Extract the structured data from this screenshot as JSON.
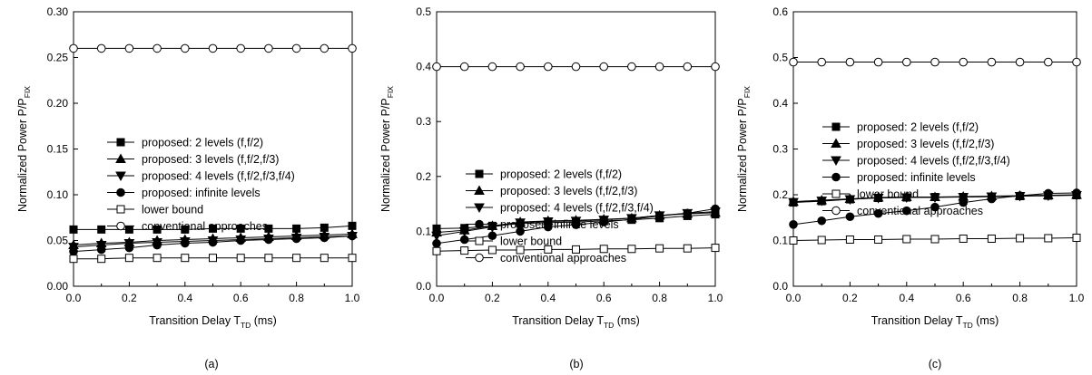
{
  "chart_data": [
    {
      "type": "line",
      "caption": "(a)",
      "xlabel": "Transition Delay T",
      "xlabel_sub": "TD",
      "xlabel_unit": " (ms)",
      "ylabel": "Normalized Power P/P",
      "ylabel_sub": "FIX",
      "xlim": [
        0.0,
        1.0
      ],
      "ylim": [
        0.0,
        0.3
      ],
      "xticks": [
        "0.0",
        "0.2",
        "0.4",
        "0.6",
        "0.8",
        "1.0"
      ],
      "yticks": [
        "0.00",
        "0.05",
        "0.10",
        "0.15",
        "0.20",
        "0.25",
        "0.30"
      ],
      "legend_position": "center-left",
      "x": [
        0.0,
        0.1,
        0.2,
        0.3,
        0.4,
        0.5,
        0.6,
        0.7,
        0.8,
        0.9,
        1.0
      ],
      "series": [
        {
          "name": "proposed: 2 levels (f,f/2)",
          "marker": "filled-square",
          "values": [
            0.062,
            0.062,
            0.062,
            0.062,
            0.062,
            0.063,
            0.063,
            0.063,
            0.063,
            0.064,
            0.066
          ]
        },
        {
          "name": "proposed: 3 levels (f,f/2,f/3)",
          "marker": "filled-triangle-up",
          "values": [
            0.045,
            0.047,
            0.048,
            0.05,
            0.051,
            0.052,
            0.053,
            0.054,
            0.055,
            0.056,
            0.057
          ]
        },
        {
          "name": "proposed: 4 levels (f,f/2,f/3,f/4)",
          "marker": "filled-triangle-down",
          "values": [
            0.043,
            0.045,
            0.047,
            0.048,
            0.049,
            0.05,
            0.051,
            0.052,
            0.053,
            0.054,
            0.055
          ]
        },
        {
          "name": "proposed: infinite levels",
          "marker": "filled-circle",
          "values": [
            0.038,
            0.04,
            0.042,
            0.045,
            0.047,
            0.048,
            0.05,
            0.051,
            0.052,
            0.053,
            0.055
          ]
        },
        {
          "name": "lower bound",
          "marker": "open-square",
          "values": [
            0.03,
            0.03,
            0.031,
            0.031,
            0.031,
            0.031,
            0.031,
            0.031,
            0.031,
            0.031,
            0.031
          ]
        },
        {
          "name": "conventional approaches",
          "marker": "open-circle",
          "values": [
            0.26,
            0.26,
            0.26,
            0.26,
            0.26,
            0.26,
            0.26,
            0.26,
            0.26,
            0.26,
            0.26
          ]
        }
      ]
    },
    {
      "type": "line",
      "caption": "(b)",
      "xlabel": "Transition Delay T",
      "xlabel_sub": "TD",
      "xlabel_unit": " (ms)",
      "ylabel": "Normalized Power P/P",
      "ylabel_sub": "FIX",
      "xlim": [
        0.0,
        1.0
      ],
      "ylim": [
        0.0,
        0.5
      ],
      "xticks": [
        "0.0",
        "0.2",
        "0.4",
        "0.6",
        "0.8",
        "1.0"
      ],
      "yticks": [
        "0.0",
        "0.1",
        "0.2",
        "0.3",
        "0.4",
        "0.5"
      ],
      "legend_position": "center",
      "x": [
        0.0,
        0.1,
        0.2,
        0.3,
        0.4,
        0.5,
        0.6,
        0.7,
        0.8,
        0.9,
        1.0
      ],
      "series": [
        {
          "name": "proposed: 2 levels (f,f/2)",
          "marker": "filled-square",
          "values": [
            0.105,
            0.106,
            0.11,
            0.114,
            0.116,
            0.117,
            0.119,
            0.121,
            0.124,
            0.128,
            0.131
          ]
        },
        {
          "name": "proposed: 3 levels (f,f/2,f/3)",
          "marker": "filled-triangle-up",
          "values": [
            0.098,
            0.102,
            0.11,
            0.117,
            0.119,
            0.12,
            0.122,
            0.124,
            0.129,
            0.132,
            0.134
          ]
        },
        {
          "name": "proposed: 4 levels (f,f/2,f/3,f/4)",
          "marker": "filled-triangle-down",
          "values": [
            0.092,
            0.1,
            0.108,
            0.116,
            0.118,
            0.119,
            0.121,
            0.124,
            0.129,
            0.133,
            0.136
          ]
        },
        {
          "name": "proposed: infinite levels",
          "marker": "filled-circle",
          "values": [
            0.078,
            0.085,
            0.092,
            0.1,
            0.108,
            0.112,
            0.117,
            0.122,
            0.128,
            0.133,
            0.141
          ]
        },
        {
          "name": "lower bound",
          "marker": "open-square",
          "values": [
            0.064,
            0.065,
            0.066,
            0.066,
            0.067,
            0.067,
            0.068,
            0.068,
            0.069,
            0.069,
            0.07
          ]
        },
        {
          "name": "conventional approaches",
          "marker": "open-circle",
          "values": [
            0.4,
            0.4,
            0.4,
            0.4,
            0.4,
            0.4,
            0.4,
            0.4,
            0.4,
            0.4,
            0.4
          ]
        }
      ]
    },
    {
      "type": "line",
      "caption": "(c)",
      "xlabel": "Transition Delay T",
      "xlabel_sub": "TD",
      "xlabel_unit": " (ms)",
      "ylabel": "Normalized Power P/P",
      "ylabel_sub": "FIX",
      "xlim": [
        0.0,
        1.0
      ],
      "ylim": [
        0.0,
        0.6
      ],
      "xticks": [
        "0.0",
        "0.2",
        "0.4",
        "0.6",
        "0.8",
        "1.0"
      ],
      "yticks": [
        "0.0",
        "0.1",
        "0.2",
        "0.3",
        "0.4",
        "0.5",
        "0.6"
      ],
      "legend_position": "top-left",
      "x": [
        0.0,
        0.1,
        0.2,
        0.3,
        0.4,
        0.5,
        0.6,
        0.7,
        0.8,
        0.9,
        1.0
      ],
      "series": [
        {
          "name": "proposed: 2 levels (f,f/2)",
          "marker": "filled-square",
          "values": [
            0.183,
            0.186,
            0.19,
            0.193,
            0.194,
            0.195,
            0.195,
            0.196,
            0.197,
            0.198,
            0.199
          ]
        },
        {
          "name": "proposed: 3 levels (f,f/2,f/3)",
          "marker": "filled-triangle-up",
          "values": [
            0.185,
            0.188,
            0.191,
            0.194,
            0.195,
            0.195,
            0.196,
            0.197,
            0.198,
            0.199,
            0.2
          ]
        },
        {
          "name": "proposed: 4 levels (f,f/2,f/3,f/4)",
          "marker": "filled-triangle-down",
          "values": [
            0.184,
            0.187,
            0.19,
            0.193,
            0.194,
            0.194,
            0.195,
            0.196,
            0.197,
            0.198,
            0.199
          ]
        },
        {
          "name": "proposed: infinite levels",
          "marker": "filled-circle",
          "values": [
            0.135,
            0.143,
            0.152,
            0.159,
            0.165,
            0.173,
            0.183,
            0.191,
            0.198,
            0.203,
            0.204
          ]
        },
        {
          "name": "lower bound",
          "marker": "open-square",
          "values": [
            0.1,
            0.101,
            0.102,
            0.102,
            0.103,
            0.103,
            0.104,
            0.104,
            0.105,
            0.105,
            0.106
          ]
        },
        {
          "name": "conventional approaches",
          "marker": "open-circle",
          "values": [
            0.49,
            0.49,
            0.49,
            0.49,
            0.49,
            0.49,
            0.49,
            0.49,
            0.49,
            0.49,
            0.49
          ]
        }
      ]
    }
  ]
}
